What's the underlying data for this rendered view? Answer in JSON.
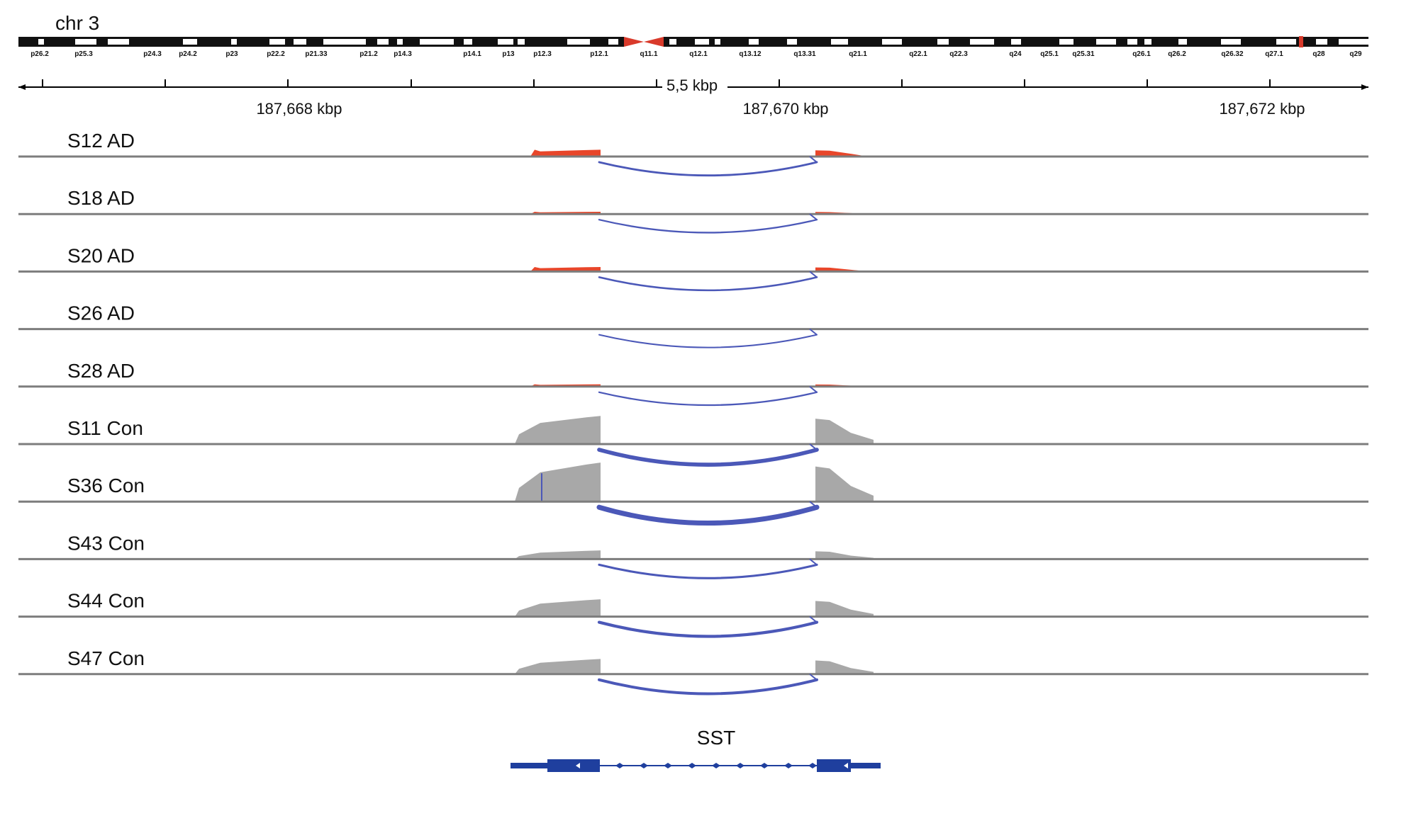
{
  "chromosome": "chr 3",
  "bands": [
    "p26.2",
    "p25.3",
    "p24.3",
    "p24.2",
    "p23",
    "p22.2",
    "p21.33",
    "p21.2",
    "p14.3",
    "p14.1",
    "p13",
    "p12.3",
    "p12.1",
    "q11.1",
    "q12.1",
    "q13.12",
    "q13.31",
    "q21.1",
    "q22.1",
    "q22.3",
    "q24",
    "q25.1",
    "q25.31",
    "q26.1",
    "q26.2",
    "q26.32",
    "q27.1",
    "q28",
    "q29"
  ],
  "ruler": {
    "span_label": "5,5 kbp",
    "tick_labels": [
      "187,668 kbp",
      "187,670 kbp",
      "187,672 kbp"
    ]
  },
  "tracks": [
    {
      "name": "S12 AD",
      "group": "AD",
      "coverage_level": 0.06
    },
    {
      "name": "S18 AD",
      "group": "AD",
      "coverage_level": 0.02
    },
    {
      "name": "S20 AD",
      "group": "AD",
      "coverage_level": 0.04
    },
    {
      "name": "S26 AD",
      "group": "AD",
      "coverage_level": 0.0
    },
    {
      "name": "S28 AD",
      "group": "AD",
      "coverage_level": 0.02
    },
    {
      "name": "S11 Con",
      "group": "Con",
      "coverage_level": 0.26
    },
    {
      "name": "S36 Con",
      "group": "Con",
      "coverage_level": 0.36
    },
    {
      "name": "S43 Con",
      "group": "Con",
      "coverage_level": 0.08
    },
    {
      "name": "S44 Con",
      "group": "Con",
      "coverage_level": 0.16
    },
    {
      "name": "S47 Con",
      "group": "Con",
      "coverage_level": 0.14
    }
  ],
  "gene": {
    "name": "SST"
  },
  "colors": {
    "ad_coverage": "#e8462a",
    "con_coverage": "#a8a8a8",
    "junction_arc": "#4b58b8",
    "gene_model": "#1f3f9e",
    "track_baseline": "#7d7d7d",
    "centromere": "#d93a2b"
  }
}
